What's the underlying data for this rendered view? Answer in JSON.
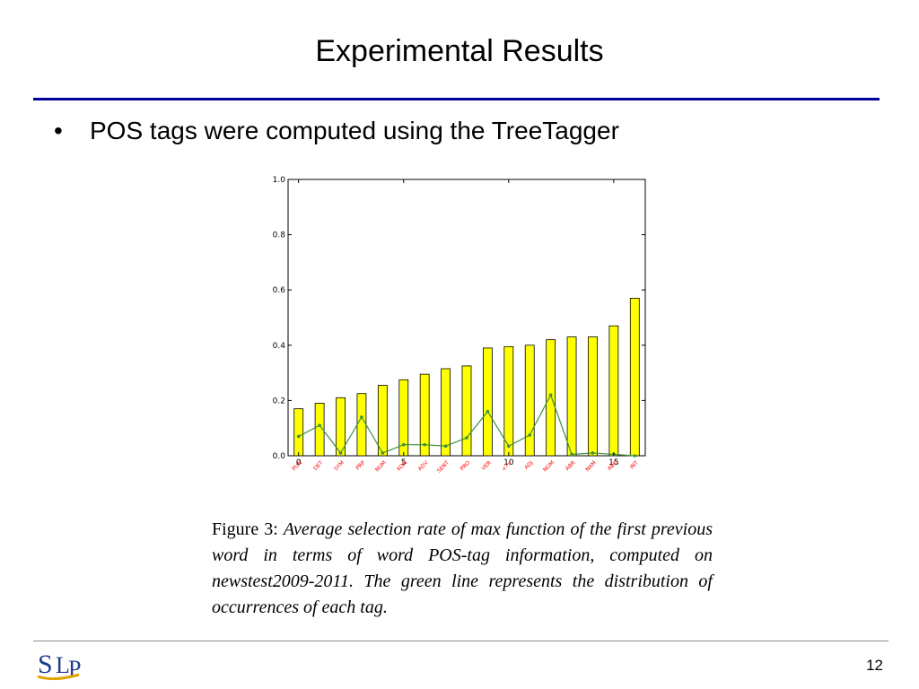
{
  "slide": {
    "title": "Experimental Results",
    "bullet": "POS tags were computed using the TreeTagger",
    "page_number": "12",
    "logo_text": "SLP"
  },
  "caption": {
    "label": "Figure 3:",
    "text": "Average selection rate of max function of the first previous word in terms of word POS-tag information, computed on newstest2009-2011. The green line represents the distribution of occurrences of each tag."
  },
  "colors": {
    "title_rule": "#00009c",
    "bar_fill": "#ffff00",
    "line": "#3f8f3f",
    "tag_labels": "#ff0000"
  },
  "chart_data": {
    "type": "bar",
    "categories": [
      "PUN",
      "DET",
      "SYM",
      "PRP",
      "NUM",
      "KON",
      "ADV",
      "SENT",
      "PRO",
      "VER",
      "<?>",
      "ADJ",
      "NOM",
      "ABR",
      "NAM",
      "ABK",
      "INT"
    ],
    "series": [
      {
        "type": "bar",
        "values": [
          0.17,
          0.19,
          0.21,
          0.225,
          0.255,
          0.275,
          0.295,
          0.315,
          0.325,
          0.39,
          0.395,
          0.4,
          0.42,
          0.43,
          0.43,
          0.47,
          0.57
        ]
      },
      {
        "type": "line",
        "values": [
          0.07,
          0.11,
          0.01,
          0.14,
          0.01,
          0.04,
          0.04,
          0.035,
          0.065,
          0.16,
          0.035,
          0.075,
          0.22,
          0.005,
          0.01,
          0.005,
          0.0
        ]
      }
    ],
    "x_ticks": [
      "0",
      "5",
      "10",
      "15"
    ],
    "y_ticks": [
      "0.0",
      "0.2",
      "0.4",
      "0.6",
      "0.8",
      "1.0"
    ],
    "ylim": [
      0,
      1.0
    ],
    "xlim": [
      -0.5,
      16.5
    ],
    "grid": false,
    "title": "",
    "xlabel": "",
    "ylabel": ""
  }
}
